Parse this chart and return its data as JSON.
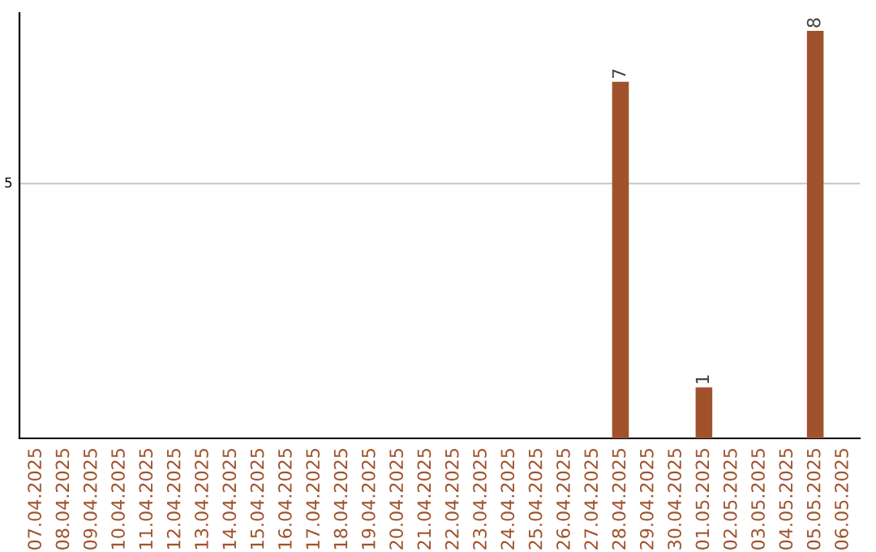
{
  "chart_data": {
    "type": "bar",
    "categories": [
      "07.04.2025",
      "08.04.2025",
      "09.04.2025",
      "10.04.2025",
      "11.04.2025",
      "12.04.2025",
      "13.04.2025",
      "14.04.2025",
      "15.04.2025",
      "16.04.2025",
      "17.04.2025",
      "18.04.2025",
      "19.04.2025",
      "20.04.2025",
      "21.04.2025",
      "22.04.2025",
      "23.04.2025",
      "24.04.2025",
      "25.04.2025",
      "26.04.2025",
      "27.04.2025",
      "28.04.2025",
      "29.04.2025",
      "30.04.2025",
      "01.05.2025",
      "02.05.2025",
      "03.05.2025",
      "04.05.2025",
      "05.05.2025",
      "06.05.2025"
    ],
    "values": [
      null,
      null,
      null,
      null,
      null,
      null,
      null,
      null,
      null,
      null,
      null,
      null,
      null,
      null,
      null,
      null,
      null,
      null,
      null,
      null,
      null,
      7,
      null,
      null,
      1,
      null,
      null,
      null,
      8,
      null
    ],
    "data_labels": true,
    "color": "#a0522d",
    "ylim": [
      0,
      8.35
    ],
    "ref_lines": [
      {
        "axis": "y",
        "value": 5,
        "label": "5",
        "color": "#cccccc"
      }
    ],
    "legend": false
  }
}
